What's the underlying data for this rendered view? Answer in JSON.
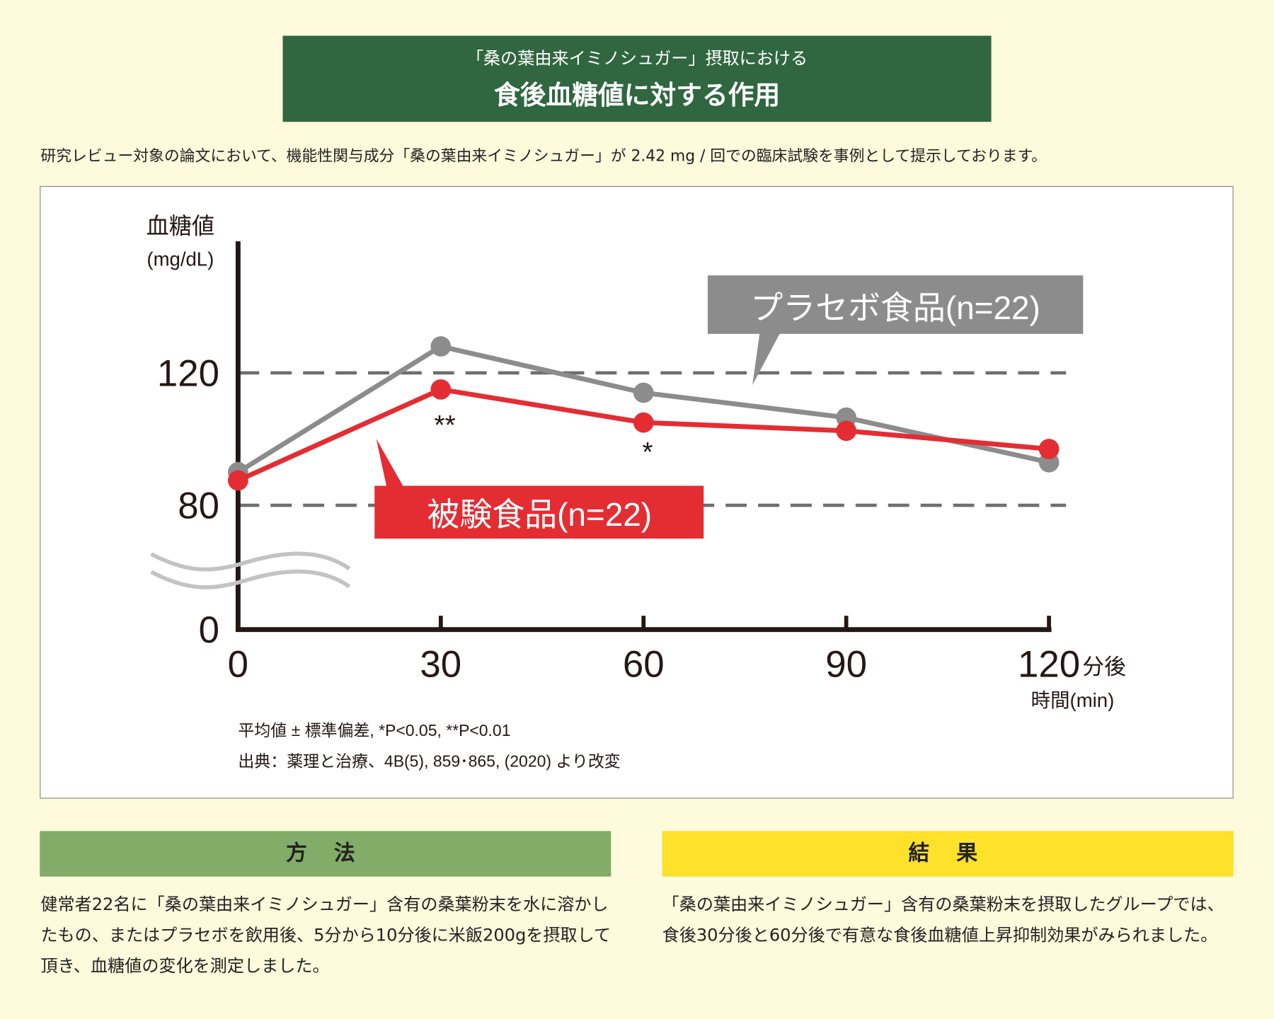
{
  "header": {
    "subtitle": "「桑の葉由来イミノシュガー」摂取における",
    "title": "食後血糖値に対する作用"
  },
  "lead": "研究レビュー対象の論文において、機能性関与成分「桑の葉由来イミノシュガー」が 2.42 mg / 回での臨床試験を事例として提示しております。",
  "chart_data": {
    "type": "line",
    "ylabel": "血糖値",
    "yunit": "(mg/dL)",
    "xlabel": "時間(min)",
    "xunit": "分後",
    "x": [
      0,
      30,
      60,
      90,
      120
    ],
    "yticks": [
      0,
      80,
      120
    ],
    "xticks": [
      0,
      30,
      60,
      90,
      120
    ],
    "axis_break": true,
    "reference_lines": [
      80,
      120
    ],
    "series": [
      {
        "name": "プラセボ食品(n=22)",
        "color": "#8c8c8c",
        "values": [
          90,
          128,
          114,
          106.5,
          93
        ]
      },
      {
        "name": "被験食品(n=22)",
        "color": "#e32d33",
        "values": [
          87.5,
          115,
          105,
          102.5,
          97
        ]
      }
    ],
    "annotations": [
      {
        "x": 30,
        "text": "**"
      },
      {
        "x": 60,
        "text": "*"
      }
    ]
  },
  "notes": [
    "平均値 ± 標準偏差, *P<0.05, **P<0.01",
    "出典：薬理と治療、4B(5), 859･865, (2020) より改変"
  ],
  "method": {
    "title": "方 法",
    "text": "健常者22名に「桑の葉由来イミノシュガー」含有の桑葉粉末を水に溶かしたもの、またはプラセボを飲用後、5分から10分後に米飯200gを摂取して頂き、血糖値の変化を測定しました。",
    "color": "#82ac68"
  },
  "result": {
    "title": "結 果",
    "text": "「桑の葉由来イミノシュガー」含有の桑葉粉末を摂取したグループでは、食後30分後と60分後で有意な食後血糖値上昇抑制効果がみられました。",
    "color": "#fde12a"
  }
}
